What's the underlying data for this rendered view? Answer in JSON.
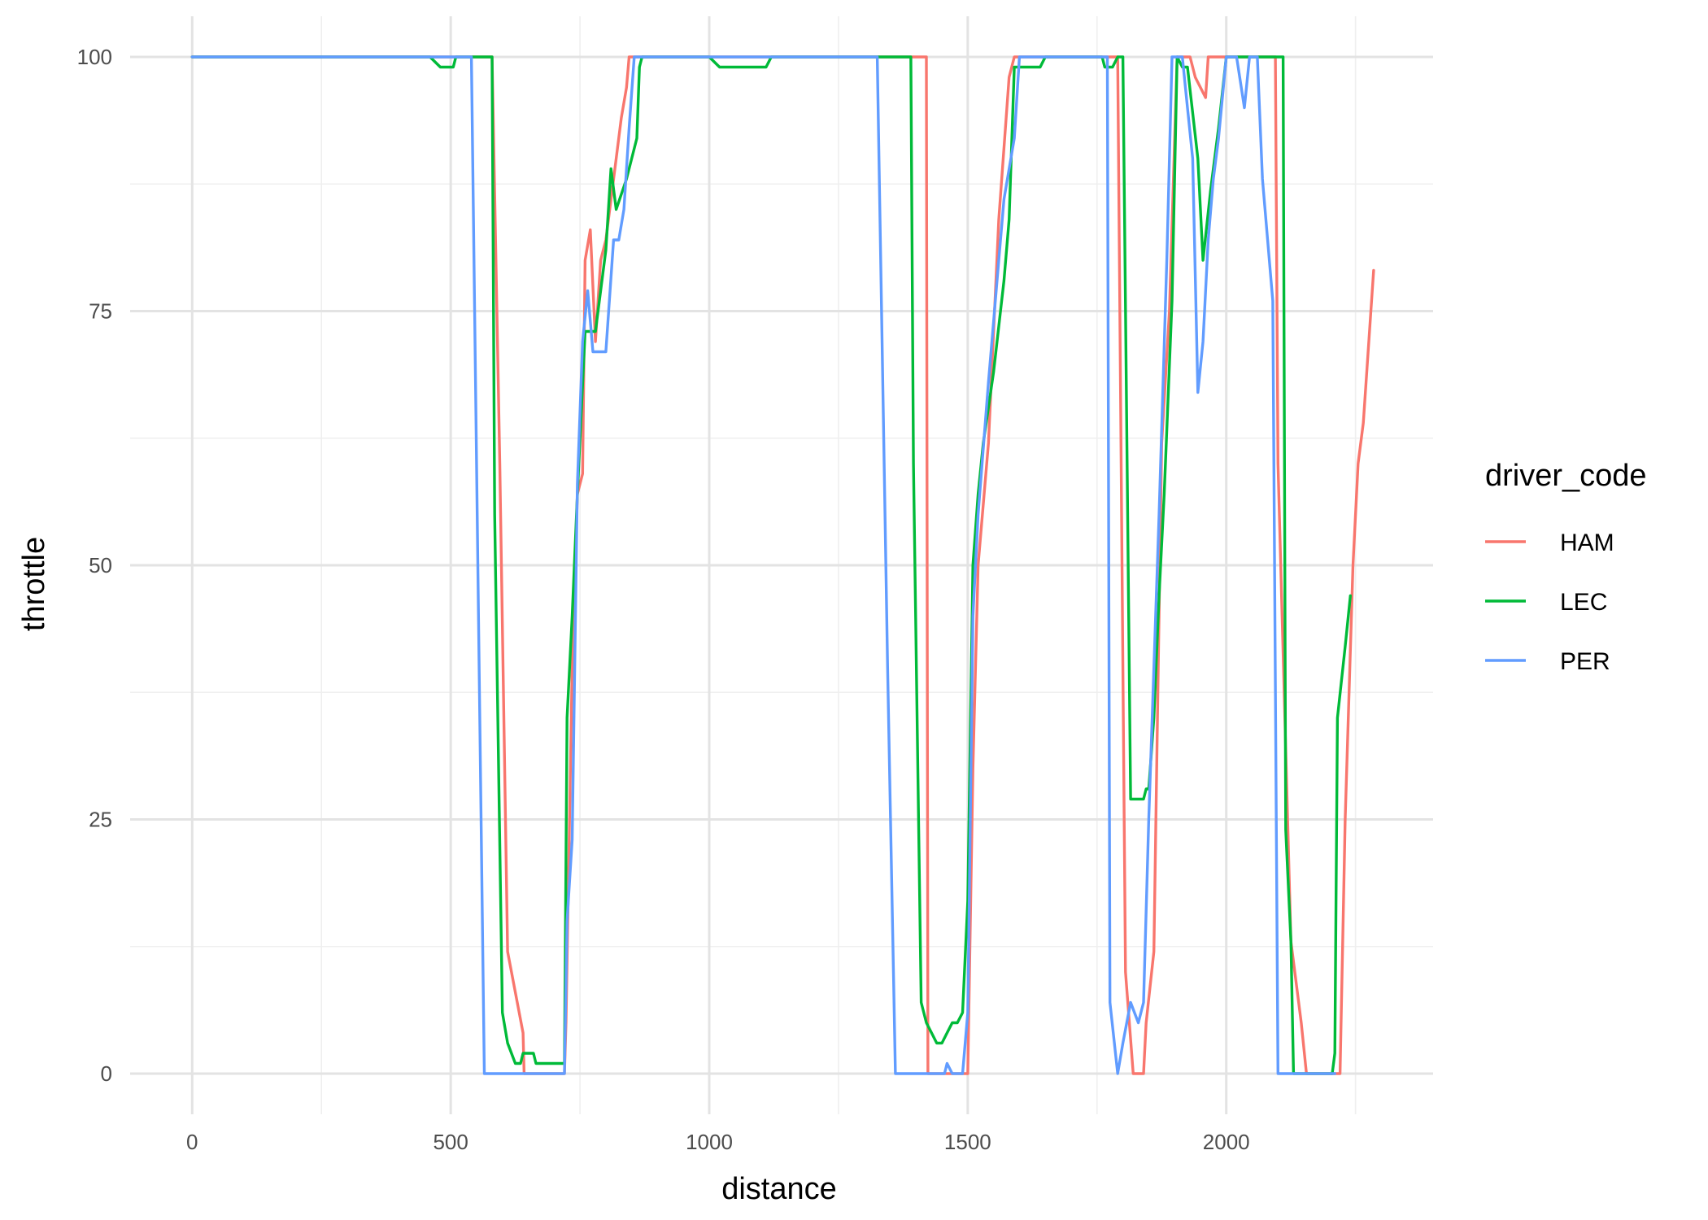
{
  "chart_data": {
    "type": "line",
    "title": "",
    "xlabel": "distance",
    "ylabel": "throttle",
    "xlim": [
      -120,
      2400
    ],
    "ylim": [
      -4,
      104
    ],
    "x_ticks": [
      0,
      500,
      1000,
      1500,
      2000
    ],
    "x_tick_labels": [
      "0",
      "500",
      "1000",
      "1500",
      "2000"
    ],
    "y_ticks": [
      0,
      25,
      50,
      75,
      100
    ],
    "y_tick_labels": [
      "0",
      "25",
      "50",
      "75",
      "100"
    ],
    "x_minor_ticks": [
      250,
      750,
      1250,
      1750,
      2250
    ],
    "y_minor_ticks": [
      12.5,
      37.5,
      62.5,
      87.5
    ],
    "grid": true,
    "legend": {
      "title": "driver_code",
      "position": "right"
    },
    "series": [
      {
        "name": "HAM",
        "color": "#F8766D",
        "points": [
          [
            0,
            100
          ],
          [
            580,
            100
          ],
          [
            595,
            60
          ],
          [
            610,
            12
          ],
          [
            625,
            8
          ],
          [
            640,
            4
          ],
          [
            642,
            0
          ],
          [
            720,
            0
          ],
          [
            723,
            5
          ],
          [
            735,
            40
          ],
          [
            745,
            57
          ],
          [
            755,
            59
          ],
          [
            760,
            80
          ],
          [
            770,
            83
          ],
          [
            780,
            72
          ],
          [
            790,
            80
          ],
          [
            800,
            82
          ],
          [
            820,
            90
          ],
          [
            830,
            94
          ],
          [
            840,
            97
          ],
          [
            845,
            100
          ],
          [
            1420,
            100
          ],
          [
            1423,
            0
          ],
          [
            1500,
            0
          ],
          [
            1510,
            30
          ],
          [
            1520,
            50
          ],
          [
            1540,
            62
          ],
          [
            1560,
            84
          ],
          [
            1580,
            98
          ],
          [
            1590,
            100
          ],
          [
            1790,
            100
          ],
          [
            1805,
            10
          ],
          [
            1820,
            0
          ],
          [
            1840,
            0
          ],
          [
            1845,
            5
          ],
          [
            1860,
            12
          ],
          [
            1875,
            62
          ],
          [
            1890,
            75
          ],
          [
            1905,
            100
          ],
          [
            1930,
            100
          ],
          [
            1940,
            98
          ],
          [
            1960,
            96
          ],
          [
            1965,
            100
          ],
          [
            2095,
            100
          ],
          [
            2100,
            60
          ],
          [
            2125,
            13
          ],
          [
            2145,
            5
          ],
          [
            2155,
            0
          ],
          [
            2220,
            0
          ],
          [
            2230,
            25
          ],
          [
            2245,
            50
          ],
          [
            2255,
            60
          ],
          [
            2265,
            64
          ],
          [
            2285,
            79
          ]
        ]
      },
      {
        "name": "LEC",
        "color": "#00BA38",
        "points": [
          [
            0,
            100
          ],
          [
            460,
            100
          ],
          [
            480,
            99
          ],
          [
            505,
            99
          ],
          [
            510,
            100
          ],
          [
            580,
            100
          ],
          [
            585,
            55
          ],
          [
            600,
            6
          ],
          [
            610,
            3
          ],
          [
            625,
            1
          ],
          [
            635,
            1
          ],
          [
            640,
            2
          ],
          [
            660,
            2
          ],
          [
            665,
            1
          ],
          [
            720,
            1
          ],
          [
            725,
            35
          ],
          [
            735,
            45
          ],
          [
            745,
            57
          ],
          [
            760,
            73
          ],
          [
            770,
            73
          ],
          [
            780,
            73
          ],
          [
            800,
            81
          ],
          [
            810,
            89
          ],
          [
            820,
            85
          ],
          [
            840,
            88
          ],
          [
            860,
            92
          ],
          [
            865,
            99
          ],
          [
            870,
            100
          ],
          [
            1000,
            100
          ],
          [
            1020,
            99
          ],
          [
            1110,
            99
          ],
          [
            1120,
            100
          ],
          [
            1390,
            100
          ],
          [
            1395,
            60
          ],
          [
            1410,
            7
          ],
          [
            1420,
            5
          ],
          [
            1430,
            4
          ],
          [
            1440,
            3
          ],
          [
            1450,
            3
          ],
          [
            1460,
            4
          ],
          [
            1470,
            5
          ],
          [
            1480,
            5
          ],
          [
            1490,
            6
          ],
          [
            1500,
            17
          ],
          [
            1510,
            50
          ],
          [
            1520,
            57
          ],
          [
            1530,
            62
          ],
          [
            1550,
            69
          ],
          [
            1570,
            78
          ],
          [
            1580,
            84
          ],
          [
            1590,
            99
          ],
          [
            1640,
            99
          ],
          [
            1650,
            100
          ],
          [
            1760,
            100
          ],
          [
            1765,
            99
          ],
          [
            1780,
            99
          ],
          [
            1790,
            100
          ],
          [
            1800,
            100
          ],
          [
            1815,
            27
          ],
          [
            1840,
            27
          ],
          [
            1845,
            28
          ],
          [
            1850,
            28
          ],
          [
            1860,
            35
          ],
          [
            1870,
            47
          ],
          [
            1880,
            57
          ],
          [
            1895,
            76
          ],
          [
            1905,
            100
          ],
          [
            1915,
            99
          ],
          [
            1925,
            99
          ],
          [
            1945,
            90
          ],
          [
            1955,
            80
          ],
          [
            1970,
            87
          ],
          [
            1985,
            93
          ],
          [
            2000,
            100
          ],
          [
            2110,
            100
          ],
          [
            2115,
            24
          ],
          [
            2125,
            13
          ],
          [
            2130,
            0
          ],
          [
            2205,
            0
          ],
          [
            2210,
            2
          ],
          [
            2215,
            35
          ],
          [
            2230,
            42
          ],
          [
            2240,
            47
          ]
        ]
      },
      {
        "name": "PER",
        "color": "#619CFF",
        "points": [
          [
            0,
            100
          ],
          [
            540,
            100
          ],
          [
            555,
            40
          ],
          [
            565,
            0
          ],
          [
            720,
            0
          ],
          [
            725,
            15
          ],
          [
            735,
            23
          ],
          [
            745,
            58
          ],
          [
            755,
            72
          ],
          [
            765,
            77
          ],
          [
            775,
            71
          ],
          [
            800,
            71
          ],
          [
            815,
            82
          ],
          [
            825,
            82
          ],
          [
            835,
            85
          ],
          [
            845,
            93
          ],
          [
            855,
            100
          ],
          [
            1325,
            100
          ],
          [
            1345,
            40
          ],
          [
            1360,
            0
          ],
          [
            1455,
            0
          ],
          [
            1460,
            1
          ],
          [
            1470,
            0
          ],
          [
            1490,
            0
          ],
          [
            1500,
            6
          ],
          [
            1510,
            45
          ],
          [
            1520,
            55
          ],
          [
            1540,
            68
          ],
          [
            1560,
            80
          ],
          [
            1570,
            86
          ],
          [
            1590,
            92
          ],
          [
            1600,
            100
          ],
          [
            1750,
            100
          ],
          [
            1770,
            100
          ],
          [
            1775,
            7
          ],
          [
            1790,
            0
          ],
          [
            1800,
            3
          ],
          [
            1815,
            7
          ],
          [
            1830,
            5
          ],
          [
            1840,
            7
          ],
          [
            1850,
            25
          ],
          [
            1870,
            55
          ],
          [
            1885,
            80
          ],
          [
            1895,
            100
          ],
          [
            1905,
            100
          ],
          [
            1915,
            100
          ],
          [
            1925,
            95
          ],
          [
            1935,
            90
          ],
          [
            1945,
            67
          ],
          [
            1955,
            72
          ],
          [
            1965,
            82
          ],
          [
            1975,
            88
          ],
          [
            1985,
            92
          ],
          [
            2000,
            100
          ],
          [
            2020,
            100
          ],
          [
            2035,
            95
          ],
          [
            2045,
            100
          ],
          [
            2060,
            100
          ],
          [
            2070,
            88
          ],
          [
            2090,
            76
          ],
          [
            2100,
            0
          ],
          [
            2210,
            0
          ]
        ]
      }
    ]
  }
}
